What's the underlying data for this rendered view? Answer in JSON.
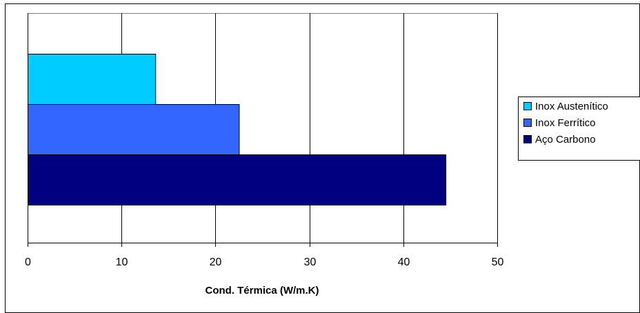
{
  "chart_data": {
    "type": "bar",
    "orientation": "horizontal",
    "title": "",
    "xlabel": "Cond. Térmica (W/m.K)",
    "ylabel": "",
    "xlim": [
      0,
      50
    ],
    "xticks": [
      0,
      10,
      20,
      30,
      40,
      50
    ],
    "grid": "vertical",
    "legend_position": "right",
    "series": [
      {
        "name": "Inox Austenítico",
        "value": 13.6,
        "color": "#00ccff"
      },
      {
        "name": "Inox Ferrítico",
        "value": 22.5,
        "color": "#3366ff"
      },
      {
        "name": "Aço Carbono",
        "value": 44.5,
        "color": "#000080"
      }
    ]
  }
}
